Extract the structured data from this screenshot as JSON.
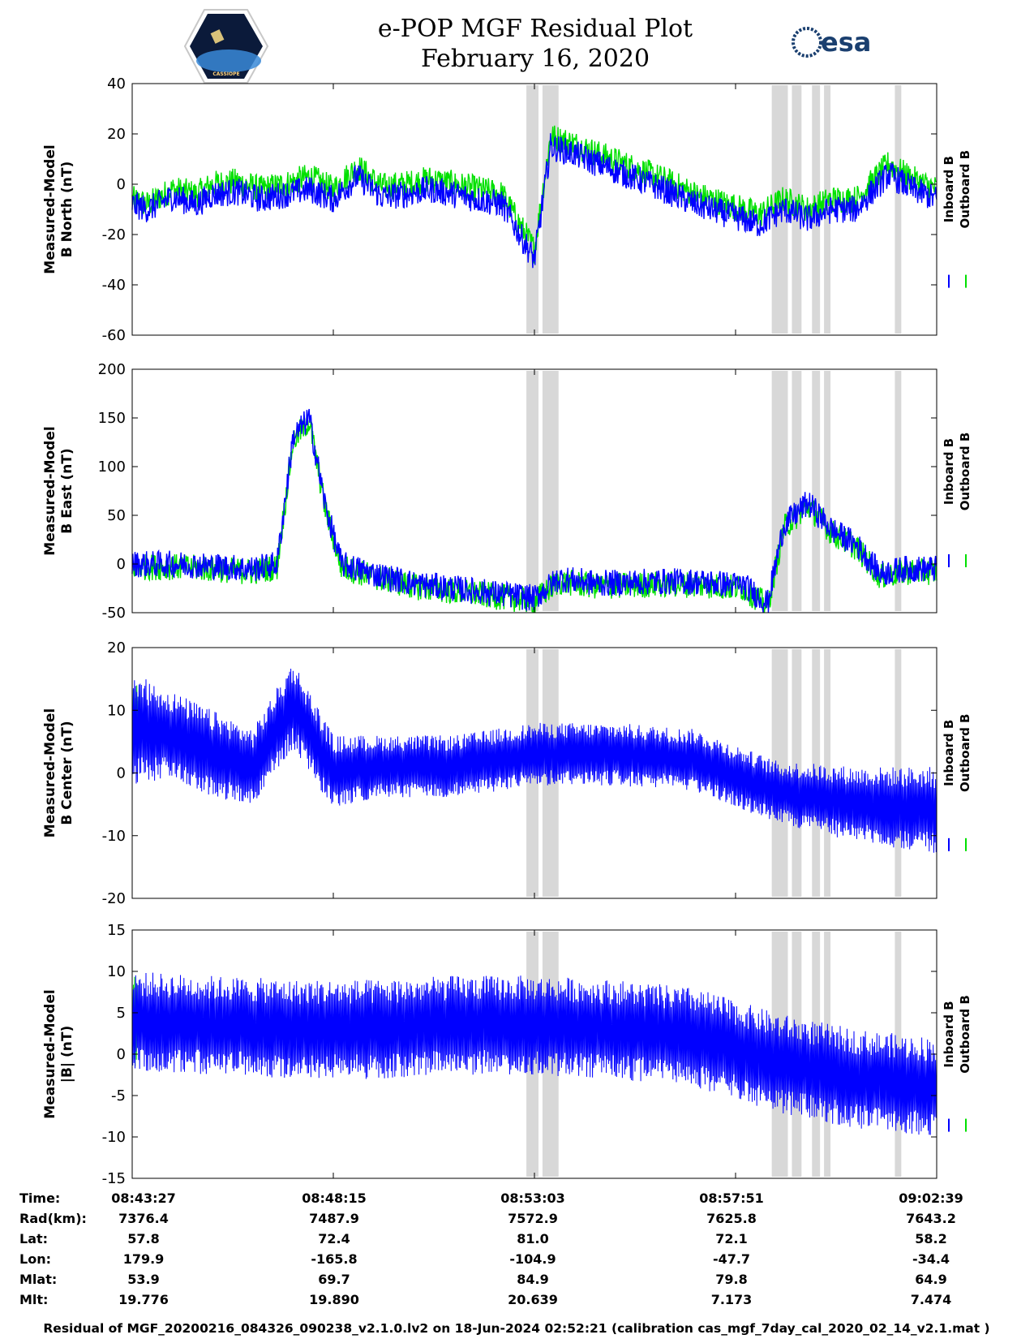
{
  "header": {
    "title_line1": "e-POP MGF Residual Plot",
    "title_line2": "February 16, 2020",
    "logo_left_text": "CASSIOPE",
    "logo_right_text": "esa"
  },
  "legend": {
    "inboard": "Inboard B",
    "outboard": "Outboard B"
  },
  "colors": {
    "inboard": "#0000ff",
    "outboard": "#00e000",
    "shade": "#d8d8d8"
  },
  "chart_data": [
    {
      "type": "line",
      "ylabel_line1": "Measured-Model",
      "ylabel_line2": "B North (nT)",
      "ylim": [
        -60,
        40
      ],
      "yticks": [
        "40",
        "20",
        "0",
        "-20",
        "-40",
        "-60"
      ],
      "series": [
        {
          "name": "Inboard B",
          "x": [
            0,
            0.02,
            0.05,
            0.08,
            0.1,
            0.13,
            0.16,
            0.19,
            0.22,
            0.25,
            0.28,
            0.31,
            0.34,
            0.37,
            0.4,
            0.43,
            0.46,
            0.5,
            0.52,
            0.55,
            0.58,
            0.62,
            0.66,
            0.7,
            0.74,
            0.78,
            0.81,
            0.84,
            0.87,
            0.9,
            0.94,
            0.97,
            1.0
          ],
          "values": [
            -8,
            -10,
            -5,
            -8,
            -4,
            -3,
            -6,
            -4,
            -2,
            -6,
            3,
            -5,
            -4,
            -2,
            -4,
            -6,
            -8,
            -30,
            15,
            12,
            8,
            3,
            -2,
            -8,
            -12,
            -16,
            -10,
            -14,
            -10,
            -10,
            4,
            -2,
            -6
          ]
        },
        {
          "name": "Outboard B",
          "x": [
            0,
            0.02,
            0.05,
            0.08,
            0.1,
            0.13,
            0.16,
            0.19,
            0.22,
            0.25,
            0.28,
            0.31,
            0.34,
            0.37,
            0.4,
            0.43,
            0.46,
            0.5,
            0.52,
            0.55,
            0.58,
            0.62,
            0.66,
            0.7,
            0.74,
            0.78,
            0.81,
            0.84,
            0.87,
            0.9,
            0.94,
            0.97,
            1.0
          ],
          "values": [
            -6,
            -8,
            -2,
            -4,
            0,
            1,
            -2,
            0,
            3,
            -2,
            7,
            -1,
            0,
            2,
            0,
            -2,
            -4,
            -26,
            19,
            16,
            12,
            7,
            2,
            -4,
            -8,
            -12,
            -6,
            -10,
            -6,
            -6,
            8,
            2,
            -2
          ]
        }
      ]
    },
    {
      "type": "line",
      "ylabel_line1": "Measured-Model",
      "ylabel_line2": "B East (nT)",
      "ylim": [
        -50,
        200
      ],
      "yticks": [
        "200",
        "150",
        "100",
        "50",
        "0",
        "-50"
      ],
      "series": [
        {
          "name": "Inboard B",
          "x": [
            0,
            0.05,
            0.1,
            0.15,
            0.18,
            0.2,
            0.22,
            0.24,
            0.26,
            0.3,
            0.35,
            0.4,
            0.45,
            0.5,
            0.53,
            0.58,
            0.65,
            0.7,
            0.76,
            0.79,
            0.81,
            0.84,
            0.87,
            0.9,
            0.93,
            0.96,
            1.0
          ],
          "values": [
            0,
            0,
            -2,
            -5,
            0,
            130,
            150,
            60,
            0,
            -10,
            -20,
            -25,
            -30,
            -35,
            -15,
            -20,
            -18,
            -18,
            -22,
            -40,
            40,
            63,
            35,
            20,
            -10,
            -5,
            -5
          ]
        },
        {
          "name": "Outboard B",
          "x": [
            0,
            0.05,
            0.1,
            0.15,
            0.18,
            0.2,
            0.22,
            0.24,
            0.26,
            0.3,
            0.35,
            0.4,
            0.45,
            0.5,
            0.53,
            0.58,
            0.65,
            0.7,
            0.76,
            0.79,
            0.81,
            0.84,
            0.87,
            0.9,
            0.93,
            0.96,
            1.0
          ],
          "values": [
            -3,
            -3,
            -5,
            -8,
            -3,
            127,
            147,
            57,
            -3,
            -13,
            -23,
            -28,
            -33,
            -38,
            -18,
            -23,
            -21,
            -21,
            -25,
            -43,
            37,
            60,
            32,
            17,
            -13,
            -8,
            -8
          ]
        }
      ]
    },
    {
      "type": "line",
      "ylabel_line1": "Measured-Model",
      "ylabel_line2": "B Center (nT)",
      "ylim": [
        -20,
        20
      ],
      "yticks": [
        "20",
        "10",
        "0",
        "-10",
        "-20"
      ],
      "series": [
        {
          "name": "Inboard B",
          "x": [
            0,
            0.05,
            0.1,
            0.15,
            0.2,
            0.25,
            0.3,
            0.4,
            0.5,
            0.6,
            0.7,
            0.8,
            0.9,
            1.0
          ],
          "values": [
            7,
            6,
            3,
            1,
            11,
            0,
            1,
            1,
            3,
            3,
            2,
            -3,
            -5,
            -6
          ],
          "spread": [
            9,
            7,
            7,
            6,
            7,
            6,
            5,
            5,
            5,
            5,
            5,
            5,
            6,
            7
          ]
        },
        {
          "name": "Outboard B",
          "x": [
            0,
            0.005,
            0.01
          ],
          "values": [
            8,
            8,
            8
          ],
          "spread": [
            6,
            6,
            6
          ]
        }
      ]
    },
    {
      "type": "line",
      "ylabel_line1": "Measured-Model",
      "ylabel_line2": "|B| (nT)",
      "ylim": [
        -15,
        15
      ],
      "yticks": [
        "15",
        "10",
        "5",
        "0",
        "-5",
        "-10",
        "-15"
      ],
      "series": [
        {
          "name": "Inboard B",
          "x": [
            0,
            0.1,
            0.2,
            0.3,
            0.4,
            0.5,
            0.6,
            0.7,
            0.8,
            0.9,
            1.0
          ],
          "values": [
            4,
            3.5,
            3,
            3,
            3.5,
            3.5,
            3,
            2,
            -1,
            -3,
            -4
          ],
          "spread": [
            6,
            6,
            6,
            6,
            6,
            6,
            6,
            6,
            6,
            6,
            6
          ]
        },
        {
          "name": "Outboard B",
          "x": [
            0,
            0.003,
            0.006
          ],
          "values": [
            4,
            4,
            4
          ],
          "spread": [
            6,
            6,
            6
          ]
        }
      ]
    }
  ],
  "gaps": [
    [
      0.49,
      0.505
    ],
    [
      0.51,
      0.53
    ],
    [
      0.795,
      0.815
    ],
    [
      0.82,
      0.832
    ],
    [
      0.845,
      0.855
    ],
    [
      0.86,
      0.868
    ],
    [
      0.948,
      0.956
    ]
  ],
  "orbit_table": {
    "row_labels": [
      "Time:",
      "Rad(km):",
      "Lat:",
      "Lon:",
      "Mlat:",
      "Mlt:"
    ],
    "columns": [
      [
        "08:43:27",
        "7376.4",
        "57.8",
        "179.9",
        "53.9",
        "19.776"
      ],
      [
        "08:48:15",
        "7487.9",
        "72.4",
        "-165.8",
        "69.7",
        "19.890"
      ],
      [
        "08:53:03",
        "7572.9",
        "81.0",
        "-104.9",
        "84.9",
        "20.639"
      ],
      [
        "08:57:51",
        "7625.8",
        "72.1",
        "-47.7",
        "79.8",
        "7.173"
      ],
      [
        "09:02:39",
        "7643.2",
        "58.2",
        "-34.4",
        "64.9",
        "7.474"
      ]
    ]
  },
  "footer": "Residual of MGF_20200216_084326_090238_v2.1.0.lv2 on 18-Jun-2024 02:52:21 (calibration cas_mgf_7day_cal_2020_02_14_v2.1.mat )"
}
